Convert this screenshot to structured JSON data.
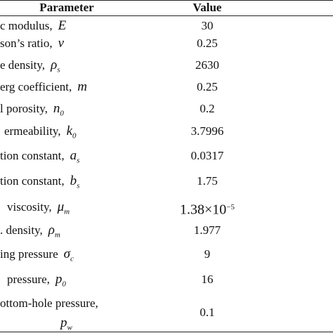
{
  "table": {
    "header": [
      "Parameter",
      "Value"
    ],
    "rows": [
      {
        "name": "c modulus,",
        "symbol": "E",
        "value": "30"
      },
      {
        "name": "son’s ratio,",
        "symbol": "v",
        "value": "0.25"
      },
      {
        "name": "e density,",
        "symbol": "ρ",
        "sub": "s",
        "value": "2630"
      },
      {
        "name": "erg coefficient,",
        "symbol": "m",
        "value": "0.25"
      },
      {
        "name": "l porosity,",
        "symbol": "n",
        "sub": "0",
        "value": "0.2"
      },
      {
        "name": "ermeability,",
        "symbol": "k",
        "sub": "0",
        "value": "3.7996"
      },
      {
        "name": "tion constant,",
        "symbol": "a",
        "sub": "s",
        "value": "0.0317"
      },
      {
        "name": "tion constant,",
        "symbol": "b",
        "sub": "s",
        "value": "1.75"
      },
      {
        "name": "viscosity,",
        "symbol": "μ",
        "sub": "m",
        "value": "1.38×10",
        "exponent": "−5"
      },
      {
        "name": ". density,",
        "symbol": "ρ",
        "sub": "m",
        "value": "1.977"
      },
      {
        "name": "ing pressure",
        "symbol": "σ",
        "sub": "c",
        "value": "9"
      },
      {
        "name": "pressure,",
        "symbol": "p",
        "sub": "0",
        "value": "16"
      },
      {
        "name": "ottom-hole pressure,",
        "symbol": "p",
        "sub": "w",
        "value": "0.1"
      }
    ]
  }
}
